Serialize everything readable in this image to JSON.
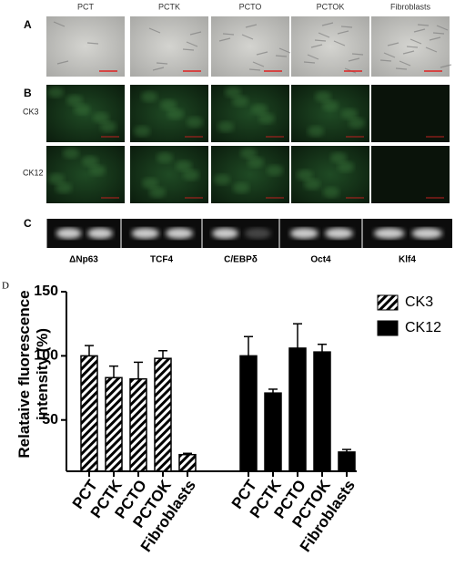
{
  "panel_a": {
    "label": "A",
    "columns": [
      "PCT",
      "PCTK",
      "PCTO",
      "PCTOK",
      "Fibroblasts"
    ]
  },
  "panel_b": {
    "label": "B",
    "rows": [
      "CK3",
      "CK12"
    ]
  },
  "panel_c": {
    "label": "C",
    "bands": [
      "ΔNp63",
      "TCF4",
      "C/EBPδ",
      "Oct4",
      "Klf4"
    ]
  },
  "panel_d": {
    "label": "D"
  },
  "chart_data": {
    "type": "bar",
    "ylabel": "Relataive fluorescence intensity (%)",
    "categories": [
      "PCT",
      "PCTK",
      "PCTO",
      "PCTOK",
      "Fibroblasts"
    ],
    "series": [
      {
        "name": "CK3",
        "pattern": "hatch",
        "color": "#000000",
        "values": [
          100,
          83,
          82,
          98,
          23
        ],
        "errors": [
          8,
          9,
          13,
          6,
          1
        ]
      },
      {
        "name": "CK12",
        "pattern": "solid",
        "color": "#000000",
        "values": [
          100,
          71,
          106,
          103,
          25
        ],
        "errors": [
          15,
          3,
          19,
          6,
          2
        ]
      }
    ],
    "ylim": [
      10,
      150
    ],
    "yticks": [
      50,
      100,
      150
    ],
    "legend": "upper right"
  }
}
